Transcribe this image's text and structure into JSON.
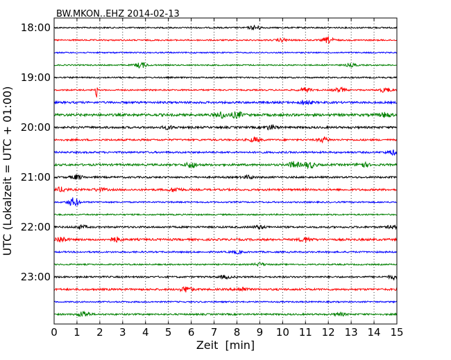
{
  "chart_data": {
    "type": "line",
    "title": "BW.MKON..EHZ 2014-02-13",
    "xlabel": "Zeit  [min]",
    "ylabel": "UTC (Lokalzeit = UTC + 01:00)",
    "xlim": [
      0,
      15
    ],
    "x_ticks": [
      0,
      1,
      2,
      3,
      4,
      5,
      6,
      7,
      8,
      9,
      10,
      11,
      12,
      13,
      14,
      15
    ],
    "y_ticks": [
      "18:00",
      "19:00",
      "20:00",
      "21:00",
      "22:00",
      "23:00"
    ],
    "grid": "vertical dotted lines at each minute",
    "trace_colors": [
      "#000000",
      "#ff0000",
      "#0000ff",
      "#008000"
    ],
    "traces": [
      {
        "start": "18:00",
        "color": "#000000",
        "noise": 1.0,
        "events": [
          {
            "x": 8.8,
            "amp": 3
          }
        ]
      },
      {
        "start": "18:15",
        "color": "#ff0000",
        "noise": 1.0,
        "events": [
          {
            "x": 12.0,
            "amp": 4
          },
          {
            "x": 10.0,
            "amp": 2
          }
        ]
      },
      {
        "start": "18:30",
        "color": "#0000ff",
        "noise": 0.9,
        "events": []
      },
      {
        "start": "18:45",
        "color": "#008000",
        "noise": 0.9,
        "events": [
          {
            "x": 3.8,
            "amp": 4
          },
          {
            "x": 13.0,
            "amp": 2
          }
        ]
      },
      {
        "start": "19:00",
        "color": "#000000",
        "noise": 1.0,
        "events": []
      },
      {
        "start": "19:15",
        "color": "#ff0000",
        "noise": 1.0,
        "events": [
          {
            "x": 1.85,
            "amp": 11
          },
          {
            "x": 11.0,
            "amp": 3
          },
          {
            "x": 12.5,
            "amp": 3
          },
          {
            "x": 14.5,
            "amp": 3
          }
        ]
      },
      {
        "start": "19:30",
        "color": "#0000ff",
        "noise": 1.5,
        "events": [
          {
            "x": 11.0,
            "amp": 3
          }
        ]
      },
      {
        "start": "19:45",
        "color": "#008000",
        "noise": 1.8,
        "events": [
          {
            "x": 7.3,
            "amp": 4
          },
          {
            "x": 8.0,
            "amp": 4
          },
          {
            "x": 14.5,
            "amp": 3
          }
        ]
      },
      {
        "start": "20:00",
        "color": "#000000",
        "noise": 1.5,
        "events": [
          {
            "x": 9.5,
            "amp": 3
          },
          {
            "x": 5.0,
            "amp": 2
          }
        ]
      },
      {
        "start": "20:15",
        "color": "#ff0000",
        "noise": 1.3,
        "events": [
          {
            "x": 8.8,
            "amp": 3
          },
          {
            "x": 11.8,
            "amp": 3
          }
        ]
      },
      {
        "start": "20:30",
        "color": "#0000ff",
        "noise": 1.3,
        "events": [
          {
            "x": 14.8,
            "amp": 3
          }
        ]
      },
      {
        "start": "20:45",
        "color": "#008000",
        "noise": 1.5,
        "events": [
          {
            "x": 6.0,
            "amp": 4
          },
          {
            "x": 10.5,
            "amp": 4
          },
          {
            "x": 11.2,
            "amp": 4
          },
          {
            "x": 13.5,
            "amp": 3
          }
        ]
      },
      {
        "start": "21:00",
        "color": "#000000",
        "noise": 1.3,
        "events": [
          {
            "x": 1.0,
            "amp": 3
          },
          {
            "x": 8.5,
            "amp": 2
          }
        ]
      },
      {
        "start": "21:15",
        "color": "#ff0000",
        "noise": 1.4,
        "events": [
          {
            "x": 0.3,
            "amp": 3
          },
          {
            "x": 2.0,
            "amp": 2
          },
          {
            "x": 5.3,
            "amp": 3
          }
        ]
      },
      {
        "start": "21:30",
        "color": "#0000ff",
        "noise": 1.0,
        "events": [
          {
            "x": 0.85,
            "amp": 6
          }
        ]
      },
      {
        "start": "21:45",
        "color": "#008000",
        "noise": 1.0,
        "events": []
      },
      {
        "start": "22:00",
        "color": "#000000",
        "noise": 1.3,
        "events": [
          {
            "x": 1.2,
            "amp": 2
          },
          {
            "x": 9.0,
            "amp": 2
          },
          {
            "x": 14.8,
            "amp": 2
          }
        ]
      },
      {
        "start": "22:15",
        "color": "#ff0000",
        "noise": 1.5,
        "events": [
          {
            "x": 0.3,
            "amp": 4
          },
          {
            "x": 2.7,
            "amp": 3
          },
          {
            "x": 11.0,
            "amp": 3
          }
        ]
      },
      {
        "start": "22:30",
        "color": "#0000ff",
        "noise": 1.1,
        "events": [
          {
            "x": 8.0,
            "amp": 2
          }
        ]
      },
      {
        "start": "22:45",
        "color": "#008000",
        "noise": 1.0,
        "events": [
          {
            "x": 9.0,
            "amp": 2
          }
        ]
      },
      {
        "start": "23:00",
        "color": "#000000",
        "noise": 1.2,
        "events": [
          {
            "x": 14.9,
            "amp": 3
          },
          {
            "x": 7.5,
            "amp": 2
          }
        ]
      },
      {
        "start": "23:15",
        "color": "#ff0000",
        "noise": 1.4,
        "events": [
          {
            "x": 5.8,
            "amp": 4
          },
          {
            "x": 8.2,
            "amp": 3
          }
        ]
      },
      {
        "start": "23:30",
        "color": "#0000ff",
        "noise": 1.0,
        "events": []
      },
      {
        "start": "23:45",
        "color": "#008000",
        "noise": 1.2,
        "events": [
          {
            "x": 1.3,
            "amp": 4
          },
          {
            "x": 12.5,
            "amp": 2
          }
        ]
      }
    ]
  }
}
